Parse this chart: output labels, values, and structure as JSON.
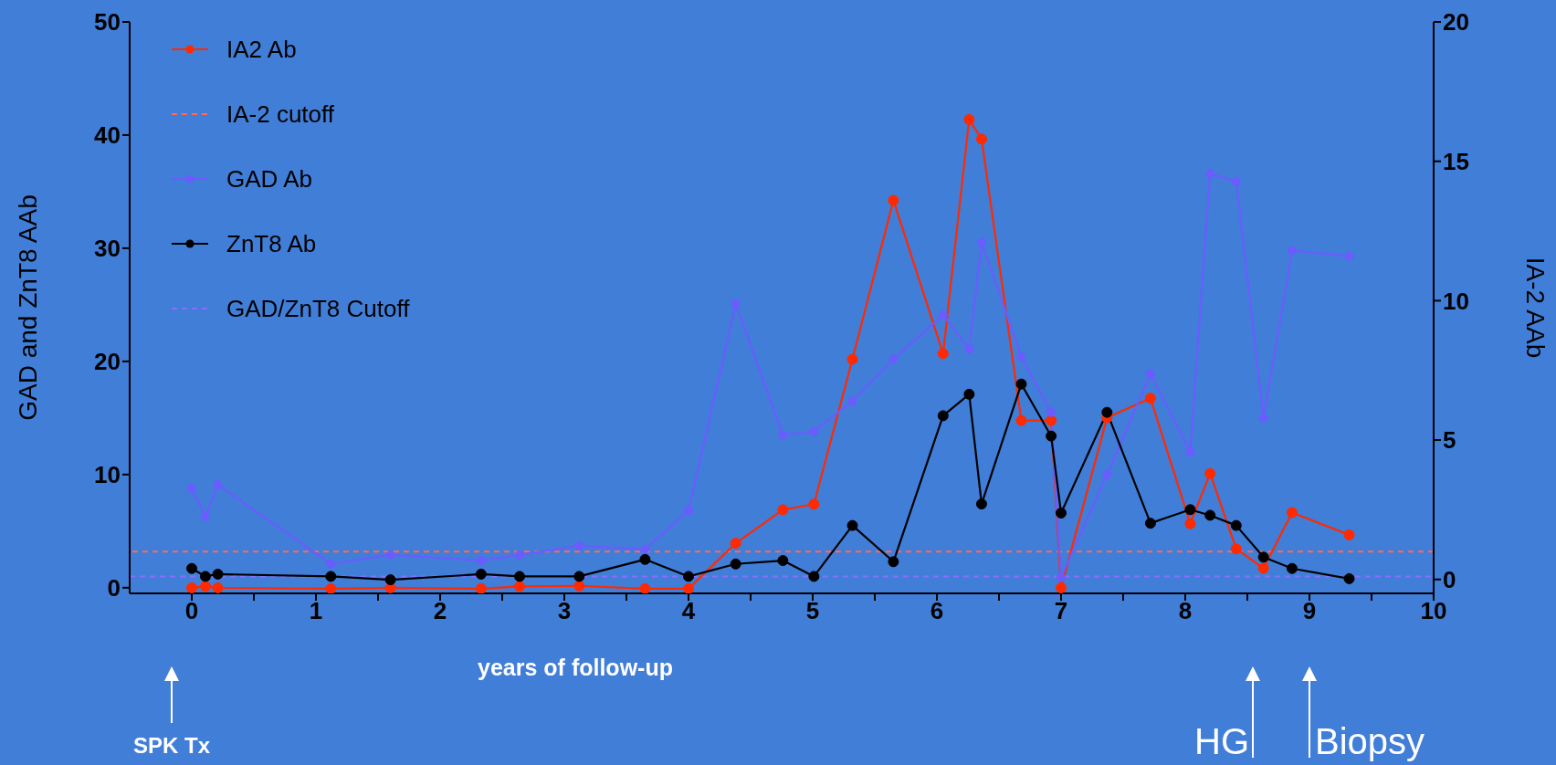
{
  "chart_data": {
    "type": "line",
    "xlabel": "years of follow-up",
    "ylabel": "GAD and ZnT8 AAb",
    "y2label": "IA-2 AAb",
    "xlim": [
      -0.5,
      10
    ],
    "xticks": [
      0,
      {
        "value": 0.5,
        "label": null
      },
      1,
      {
        "value": 1.5,
        "label": null
      },
      2,
      {
        "value": 2.5,
        "label": null
      },
      3,
      {
        "value": 3.5,
        "label": null
      },
      4,
      {
        "value": 4.5,
        "label": null
      },
      5,
      {
        "value": 5.5,
        "label": null
      },
      6,
      {
        "value": 6.5,
        "label": null
      },
      7,
      {
        "value": 7.5,
        "label": null
      },
      8,
      {
        "value": 8.5,
        "label": null
      },
      9,
      {
        "value": 9.5,
        "label": null
      },
      10
    ],
    "ylim": [
      -0.5,
      50
    ],
    "yticks": [
      0,
      10,
      20,
      30,
      40,
      50
    ],
    "y2lim": [
      -0.5,
      20
    ],
    "y2ticks": [
      0,
      5,
      10,
      15,
      20
    ],
    "x": [
      0,
      0.11,
      0.21,
      1.12,
      1.6,
      2.33,
      2.64,
      3.12,
      3.65,
      4.0,
      4.38,
      4.76,
      5.01,
      5.32,
      5.65,
      6.05,
      6.26,
      6.36,
      6.68,
      6.92,
      7.0,
      7.37,
      7.72,
      8.04,
      8.2,
      8.41,
      8.63,
      8.86,
      9.32
    ],
    "series": [
      {
        "name": "IA2 Ab",
        "color": "#ff2a00",
        "axis": "y2",
        "values": [
          -0.3,
          -0.25,
          -0.3,
          -0.33,
          -0.3,
          -0.33,
          -0.25,
          -0.23,
          -0.33,
          -0.33,
          1.3,
          2.5,
          2.7,
          7.9,
          13.6,
          8.1,
          16.5,
          15.8,
          5.7,
          5.7,
          -0.3,
          5.8,
          6.5,
          2.0,
          3.8,
          1.1,
          0.4,
          2.4,
          1.6
        ]
      },
      {
        "name": "GAD Ab",
        "color": "#6a5cff",
        "values": [
          8.8,
          6.3,
          9.1,
          2.1,
          2.9,
          2.4,
          2.9,
          3.7,
          3.4,
          6.8,
          25.1,
          13.5,
          13.8,
          16.5,
          20.2,
          24.1,
          21.1,
          30.5,
          20.4,
          15.5,
          0.9,
          10.0,
          18.9,
          12.0,
          36.6,
          35.9,
          15.0,
          29.8,
          29.3
        ]
      },
      {
        "name": "ZnT8 Ab",
        "color": "#000000",
        "values": [
          1.7,
          1.0,
          1.2,
          1.0,
          0.7,
          1.2,
          1.0,
          1.0,
          2.5,
          1.0,
          2.1,
          2.4,
          1.0,
          5.5,
          2.3,
          15.2,
          17.1,
          7.4,
          18.0,
          13.4,
          6.6,
          15.5,
          5.7,
          6.9,
          6.4,
          5.5,
          2.7,
          1.7,
          0.8
        ]
      }
    ],
    "ref_lines": [
      {
        "axis": "y2",
        "value": 1,
        "label": "IA-2 cutoff",
        "color": "#ff6a55",
        "line_style": "dashed"
      },
      {
        "axis": "y",
        "value": 1,
        "label": "GAD/ZnT8 Cutoff",
        "color": "#8a6cff",
        "line_style": "dashed"
      }
    ],
    "annotations": [
      "SPK Tx",
      "HG",
      "Biopsy"
    ],
    "marker": "circle",
    "line_style": "solid",
    "legend": "top left",
    "grid": false
  }
}
